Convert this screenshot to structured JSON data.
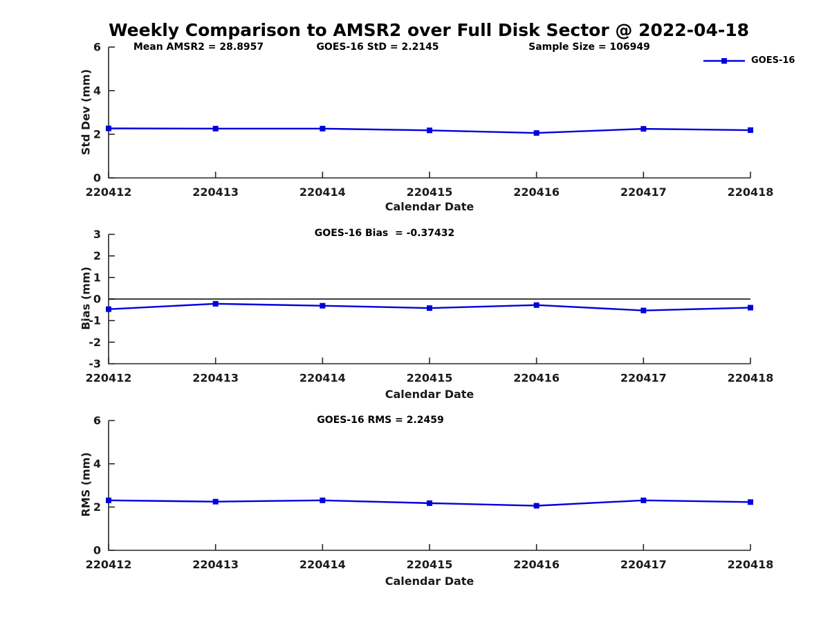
{
  "figure": {
    "title": "Weekly Comparison to AMSR2 over Full Disk Sector @ 2022-04-18",
    "legend": {
      "label": "GOES-16",
      "series_color": "#0000dd",
      "position": "northeast-outside"
    }
  },
  "colors": {
    "series_line": "#0000dd",
    "axis": "#262626",
    "tick_text": "#1a1a1a",
    "zero_line": "#000000",
    "background": "#ffffff",
    "text": "#000000"
  },
  "chart_data": [
    {
      "type": "line",
      "id": "std-dev",
      "annotations": [
        "Mean AMSR2 = 28.8957",
        "GOES-16 StD = 2.2145",
        "Sample Size = 106949"
      ],
      "xlabel": "Calendar Date",
      "ylabel": "Std Dev (mm)",
      "categories": [
        "220412",
        "220413",
        "220414",
        "220415",
        "220416",
        "220417",
        "220418"
      ],
      "series": [
        {
          "name": "GOES-16",
          "marker": "square",
          "values": [
            2.27,
            2.26,
            2.26,
            2.18,
            2.06,
            2.25,
            2.19
          ]
        }
      ],
      "ylim": [
        0,
        6
      ],
      "yticks": [
        0,
        2,
        4,
        6
      ],
      "zero_line": false,
      "grid": false
    },
    {
      "type": "line",
      "id": "bias",
      "annotations": [
        "GOES-16 Bias  = -0.37432"
      ],
      "xlabel": "Calendar Date",
      "ylabel": "Bias (mm)",
      "categories": [
        "220412",
        "220413",
        "220414",
        "220415",
        "220416",
        "220417",
        "220418"
      ],
      "series": [
        {
          "name": "GOES-16",
          "marker": "square",
          "values": [
            -0.47,
            -0.22,
            -0.31,
            -0.42,
            -0.28,
            -0.53,
            -0.4
          ]
        }
      ],
      "ylim": [
        -3,
        3
      ],
      "yticks": [
        -3,
        -2,
        -1,
        0,
        1,
        2,
        3
      ],
      "zero_line": true,
      "grid": false
    },
    {
      "type": "line",
      "id": "rms",
      "annotations": [
        "GOES-16 RMS = 2.2459"
      ],
      "xlabel": "Calendar Date",
      "ylabel": "RMS (mm)",
      "categories": [
        "220412",
        "220413",
        "220414",
        "220415",
        "220416",
        "220417",
        "220418"
      ],
      "series": [
        {
          "name": "GOES-16",
          "marker": "square",
          "values": [
            2.31,
            2.25,
            2.31,
            2.18,
            2.06,
            2.31,
            2.23
          ]
        }
      ],
      "ylim": [
        0,
        6
      ],
      "yticks": [
        0,
        2,
        4,
        6
      ],
      "zero_line": false,
      "grid": false
    }
  ]
}
